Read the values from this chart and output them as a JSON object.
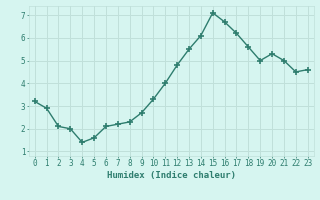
{
  "title": "",
  "xlabel": "Humidex (Indice chaleur)",
  "x": [
    0,
    1,
    2,
    3,
    4,
    5,
    6,
    7,
    8,
    9,
    10,
    11,
    12,
    13,
    14,
    15,
    16,
    17,
    18,
    19,
    20,
    21,
    22,
    23
  ],
  "y": [
    3.2,
    2.9,
    2.1,
    2.0,
    1.4,
    1.6,
    2.1,
    2.2,
    2.3,
    2.7,
    3.3,
    4.0,
    4.8,
    5.5,
    6.1,
    7.1,
    6.7,
    6.2,
    5.6,
    5.0,
    5.3,
    5.0,
    4.5,
    4.6
  ],
  "line_color": "#2e7d6e",
  "marker": "+",
  "marker_size": 4,
  "marker_lw": 1.2,
  "line_width": 1.0,
  "background_color": "#d6f5f0",
  "grid_color": "#c0e0da",
  "tick_label_color": "#2e7d6e",
  "xlabel_color": "#2e7d6e",
  "ylim": [
    0.8,
    7.4
  ],
  "yticks": [
    1,
    2,
    3,
    4,
    5,
    6,
    7
  ],
  "xlim": [
    -0.5,
    23.5
  ],
  "xticks": [
    0,
    1,
    2,
    3,
    4,
    5,
    6,
    7,
    8,
    9,
    10,
    11,
    12,
    13,
    14,
    15,
    16,
    17,
    18,
    19,
    20,
    21,
    22,
    23
  ],
  "tick_fontsize": 5.5,
  "xlabel_fontsize": 6.5
}
